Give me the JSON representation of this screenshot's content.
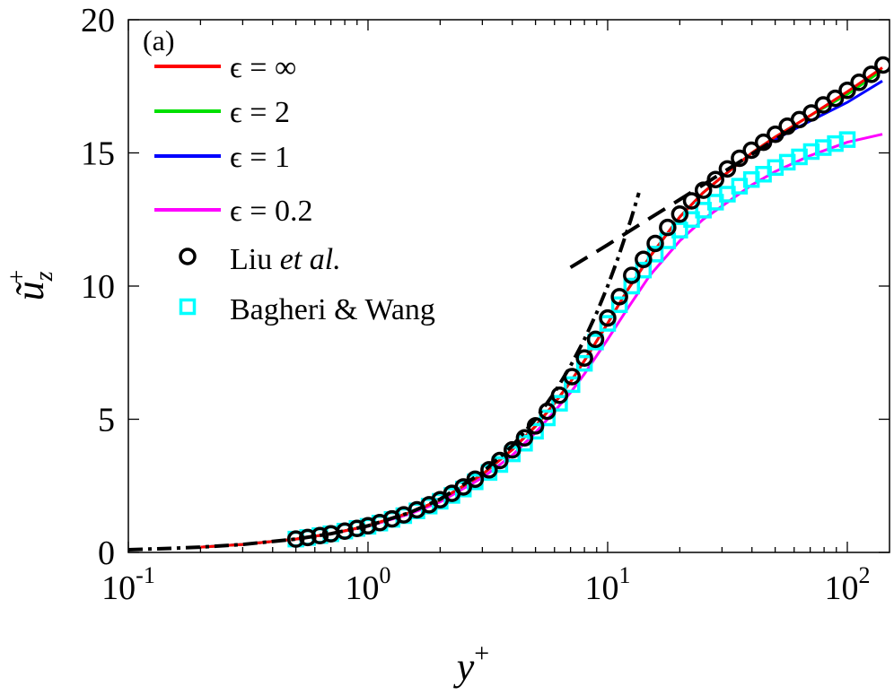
{
  "chart_data": {
    "type": "line",
    "panel_label": "(a)",
    "xscale": "log",
    "xlim": [
      0.1,
      150
    ],
    "ylim": [
      0,
      20
    ],
    "xlabel": "y",
    "xlabel_sup": "+",
    "ylabel": "ũ",
    "ylabel_sub": "z",
    "ylabel_sup": "+",
    "x_ticks": [
      {
        "value": 0.1,
        "base": "10",
        "exp": "-1"
      },
      {
        "value": 1,
        "base": "10",
        "exp": "0"
      },
      {
        "value": 10,
        "base": "10",
        "exp": "1"
      },
      {
        "value": 100,
        "base": "10",
        "exp": "2"
      }
    ],
    "y_ticks": [
      {
        "value": 0,
        "label": "0"
      },
      {
        "value": 5,
        "label": "5"
      },
      {
        "value": 10,
        "label": "10"
      },
      {
        "value": 15,
        "label": "15"
      },
      {
        "value": 20,
        "label": "20"
      }
    ],
    "legend_position": "top-left",
    "series": [
      {
        "name": "ϵ = ∞",
        "kind": "line",
        "color": "#ff0000",
        "x": [
          0.2,
          0.3,
          0.5,
          0.7,
          1,
          1.5,
          2,
          3,
          4,
          5,
          6,
          7,
          8,
          10,
          12,
          15,
          20,
          25,
          30,
          40,
          50,
          70,
          100,
          140
        ],
        "y": [
          0.2,
          0.3,
          0.5,
          0.7,
          1.0,
          1.5,
          1.97,
          2.93,
          3.86,
          4.74,
          5.6,
          6.4,
          7.2,
          8.6,
          9.8,
          11.1,
          12.6,
          13.5,
          14.1,
          15.0,
          15.6,
          16.4,
          17.3,
          18.2
        ]
      },
      {
        "name": "ϵ = 2",
        "kind": "line",
        "color": "#00e000",
        "x": [
          0.2,
          0.3,
          0.5,
          0.7,
          1,
          1.5,
          2,
          3,
          4,
          5,
          6,
          7,
          8,
          10,
          12,
          15,
          20,
          25,
          30,
          40,
          50,
          70,
          100,
          140
        ],
        "y": [
          0.2,
          0.3,
          0.5,
          0.7,
          1.0,
          1.5,
          1.97,
          2.93,
          3.86,
          4.74,
          5.6,
          6.4,
          7.2,
          8.6,
          9.8,
          11.1,
          12.6,
          13.5,
          14.1,
          15.0,
          15.6,
          16.4,
          17.2,
          18.1
        ]
      },
      {
        "name": "ϵ = 1",
        "kind": "line",
        "color": "#0000ff",
        "x": [
          0.2,
          0.3,
          0.5,
          0.7,
          1,
          1.5,
          2,
          3,
          4,
          5,
          6,
          7,
          8,
          10,
          12,
          15,
          20,
          25,
          30,
          40,
          50,
          70,
          100,
          140
        ],
        "y": [
          0.2,
          0.3,
          0.5,
          0.7,
          1.0,
          1.5,
          1.97,
          2.93,
          3.86,
          4.74,
          5.6,
          6.4,
          7.2,
          8.6,
          9.8,
          11.1,
          12.6,
          13.5,
          14.1,
          15.0,
          15.5,
          16.2,
          16.9,
          17.7
        ]
      },
      {
        "name": "ϵ = 0.2",
        "kind": "line",
        "color": "#ff00ff",
        "x": [
          0.2,
          0.3,
          0.5,
          0.7,
          1,
          1.5,
          2,
          3,
          4,
          5,
          6,
          7,
          8,
          10,
          12,
          15,
          20,
          25,
          30,
          40,
          50,
          70,
          100,
          140
        ],
        "y": [
          0.2,
          0.3,
          0.5,
          0.7,
          0.98,
          1.45,
          1.9,
          2.8,
          3.65,
          4.5,
          5.3,
          6.0,
          6.7,
          8.0,
          9.1,
          10.4,
          11.7,
          12.5,
          13.0,
          13.8,
          14.3,
          14.9,
          15.4,
          15.7
        ]
      },
      {
        "name": "Liu et al.",
        "name_pre": "Liu ",
        "name_em": "et al.",
        "kind": "marker",
        "marker": "circle",
        "color": "#000000",
        "x": [
          0.5,
          0.56,
          0.63,
          0.7,
          0.8,
          0.9,
          1.0,
          1.12,
          1.26,
          1.41,
          1.6,
          1.8,
          2.0,
          2.24,
          2.5,
          2.8,
          3.2,
          3.55,
          4.0,
          4.5,
          5.0,
          5.6,
          6.3,
          7.1,
          8.0,
          8.9,
          10,
          11.2,
          12.6,
          14.1,
          15.8,
          17.8,
          20,
          22.4,
          25.1,
          28.2,
          31.6,
          35.5,
          39.8,
          44.7,
          50.1,
          56.2,
          63.1,
          70.8,
          79.4,
          89.1,
          100,
          112,
          126,
          141
        ],
        "y": [
          0.5,
          0.56,
          0.63,
          0.7,
          0.8,
          0.9,
          1.0,
          1.12,
          1.26,
          1.41,
          1.6,
          1.79,
          1.98,
          2.22,
          2.46,
          2.75,
          3.1,
          3.45,
          3.85,
          4.3,
          4.75,
          5.3,
          5.9,
          6.6,
          7.3,
          8.0,
          8.8,
          9.6,
          10.4,
          11.0,
          11.6,
          12.2,
          12.7,
          13.2,
          13.6,
          14.0,
          14.4,
          14.8,
          15.1,
          15.4,
          15.7,
          16.0,
          16.25,
          16.5,
          16.8,
          17.05,
          17.35,
          17.65,
          17.95,
          18.3
        ]
      },
      {
        "name": "Bagheri & Wang",
        "kind": "marker",
        "marker": "square",
        "color": "#00ffff",
        "x": [
          0.5,
          0.56,
          0.63,
          0.7,
          0.8,
          0.9,
          1.0,
          1.12,
          1.26,
          1.41,
          1.6,
          1.8,
          2.0,
          2.24,
          2.5,
          2.8,
          3.2,
          3.55,
          4.0,
          4.5,
          5.0,
          5.6,
          6.3,
          7.1,
          8.0,
          8.9,
          10,
          11.2,
          12.6,
          14.1,
          15.8,
          17.8,
          20,
          22.4,
          25.1,
          28.2,
          31.6,
          35.5,
          39.8,
          44.7,
          50.1,
          56.2,
          63.1,
          70.8,
          79.4,
          89.1,
          100
        ],
        "y": [
          0.5,
          0.56,
          0.63,
          0.7,
          0.8,
          0.9,
          0.98,
          1.1,
          1.24,
          1.38,
          1.56,
          1.74,
          1.92,
          2.14,
          2.38,
          2.65,
          3.0,
          3.3,
          3.7,
          4.1,
          4.55,
          5.05,
          5.6,
          6.3,
          7.1,
          7.9,
          8.6,
          9.3,
          10.0,
          10.6,
          11.2,
          11.7,
          12.1,
          12.5,
          12.85,
          13.15,
          13.45,
          13.75,
          14.0,
          14.2,
          14.45,
          14.65,
          14.85,
          15.05,
          15.2,
          15.35,
          15.5
        ]
      }
    ],
    "reference_lines": [
      {
        "name": "viscous sublayer (u+ = y+)",
        "style": "dash-dot",
        "color": "#000000",
        "x": [
          0.1,
          0.15,
          0.2,
          0.3,
          0.5,
          0.7,
          1,
          1.5,
          2,
          3,
          4,
          5,
          6,
          7,
          8,
          9,
          10,
          11,
          12.5,
          13.5
        ],
        "y": [
          0.1,
          0.15,
          0.2,
          0.3,
          0.5,
          0.7,
          1,
          1.5,
          2,
          3,
          4,
          5,
          6,
          7,
          8,
          9,
          10,
          11,
          12.5,
          13.5
        ]
      },
      {
        "name": "log law",
        "style": "dash",
        "color": "#000000",
        "x": [
          7,
          10,
          15,
          20,
          30,
          40,
          50,
          60
        ],
        "y": [
          10.7,
          11.55,
          12.55,
          13.25,
          14.25,
          14.95,
          15.5,
          15.95
        ]
      }
    ]
  }
}
